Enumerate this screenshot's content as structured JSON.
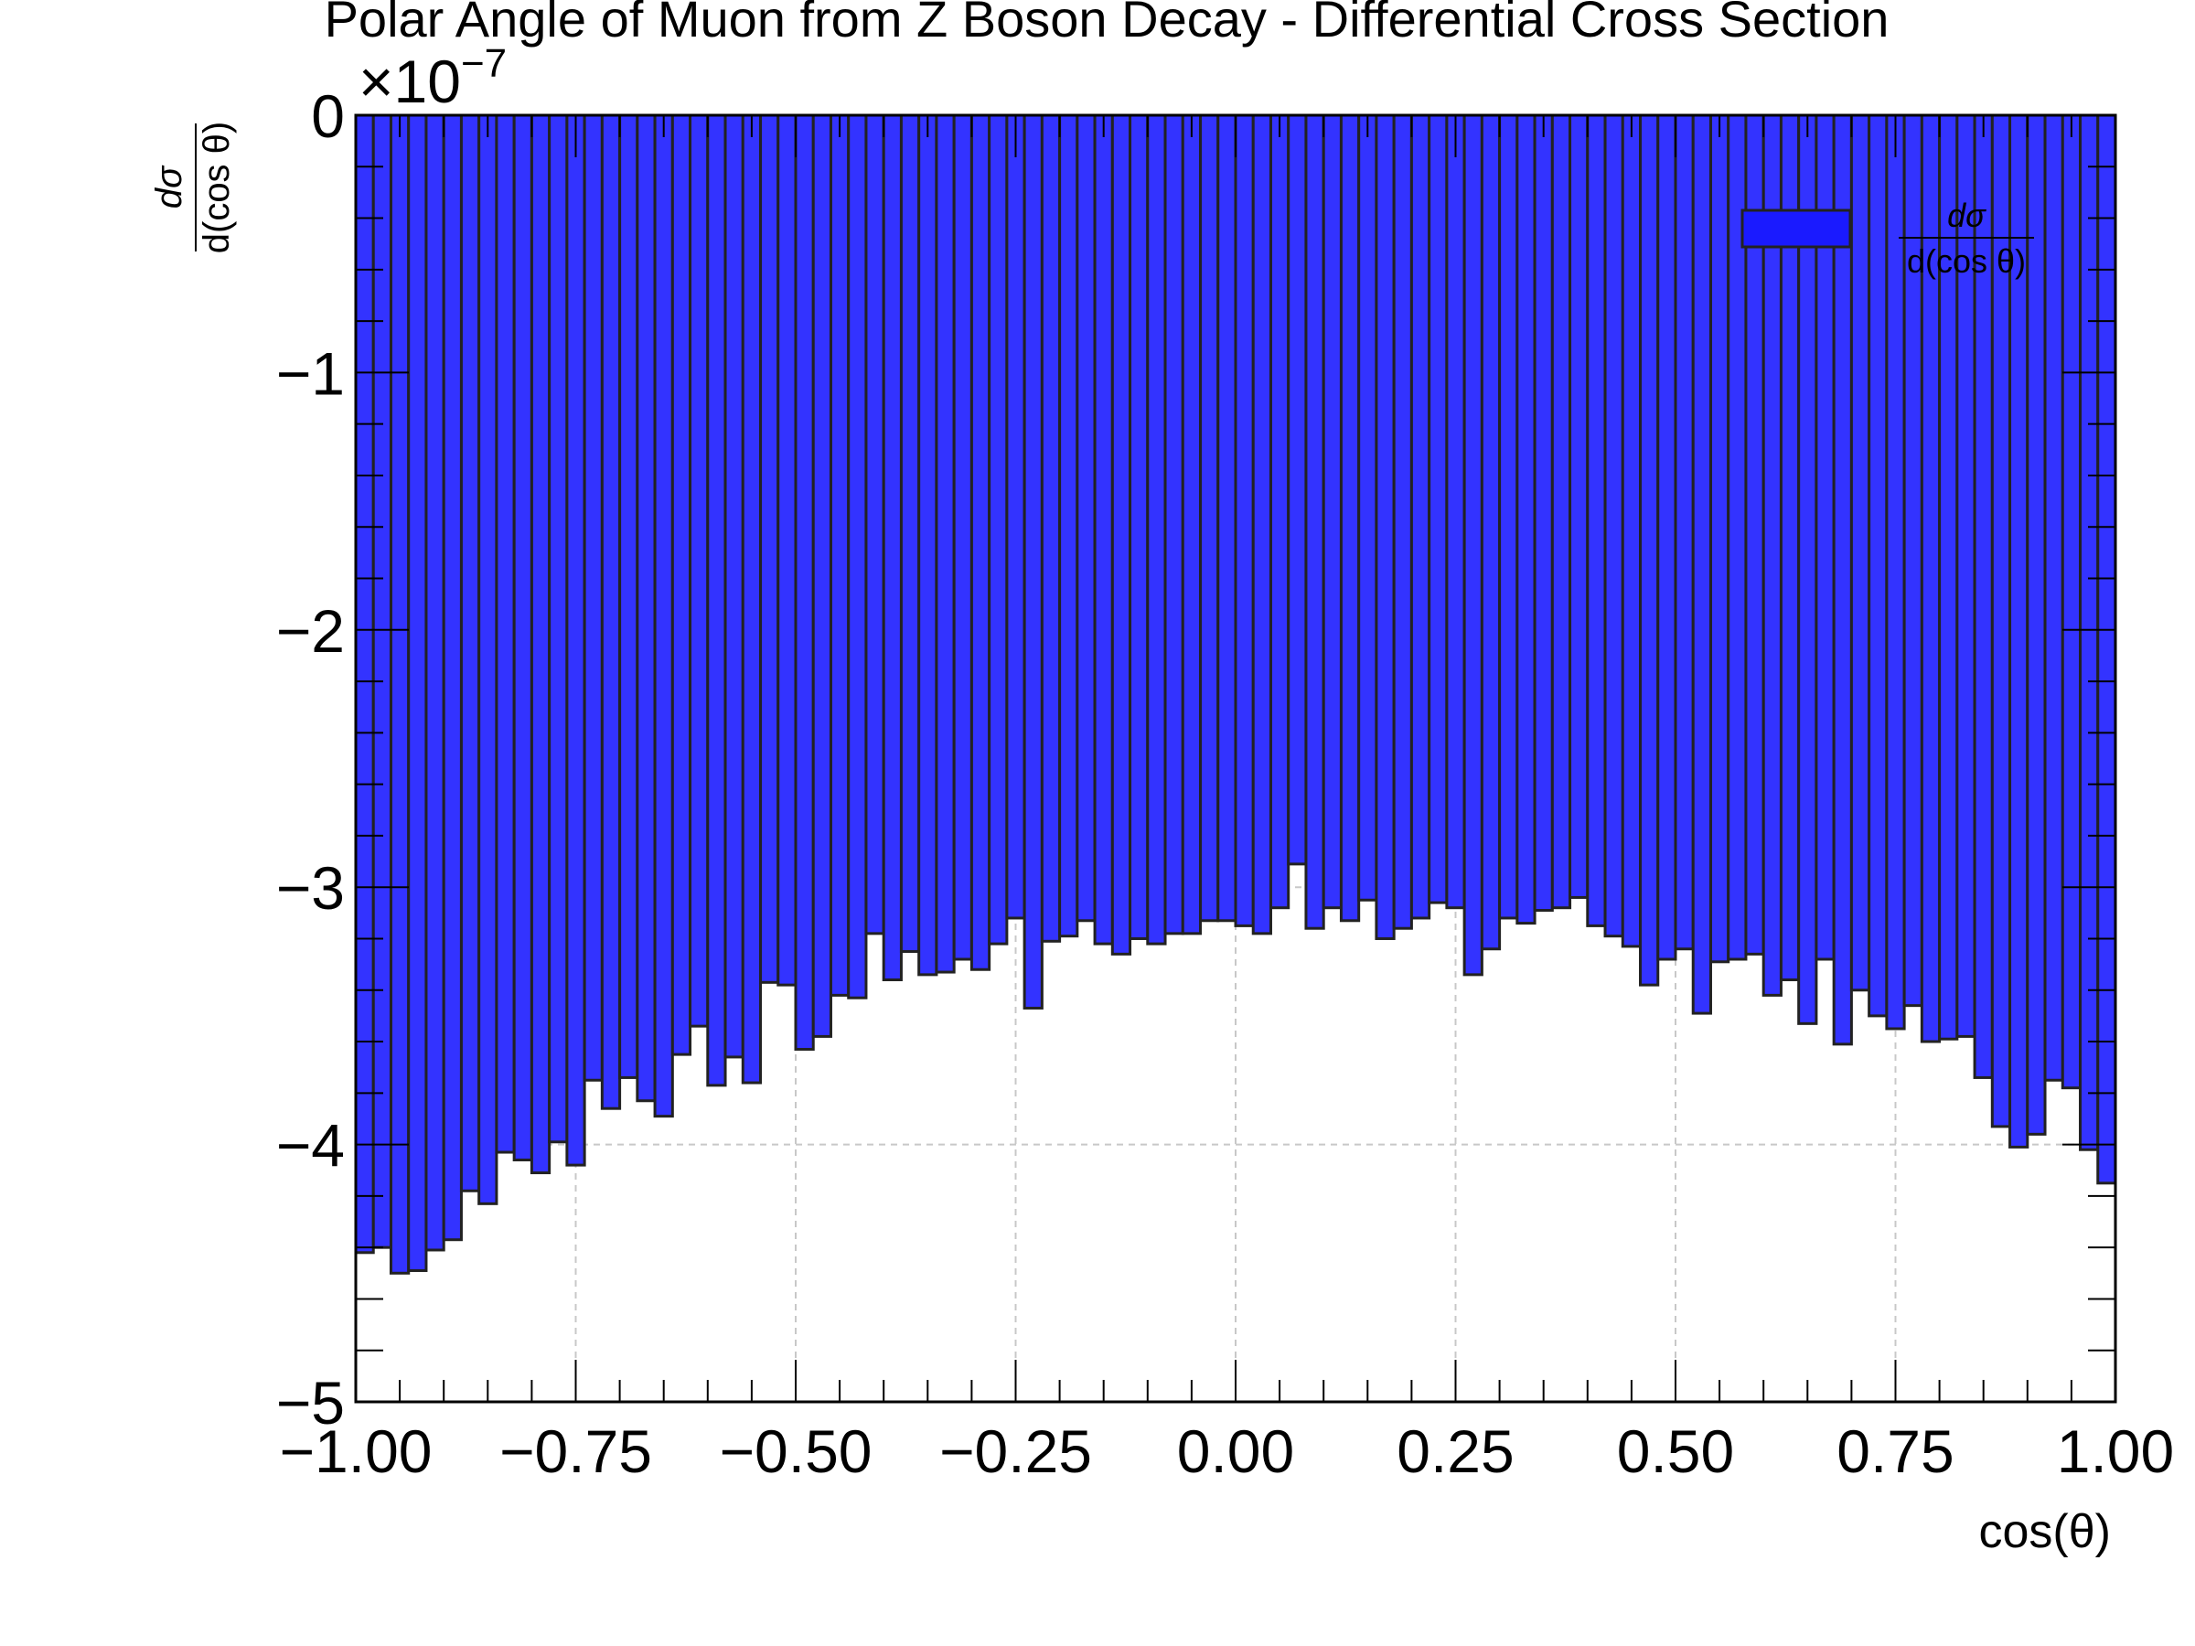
{
  "chart_data": {
    "type": "bar",
    "title": "Polar Angle of Muon from Z Boson Decay - Differential Cross Section",
    "xlabel": "cos(θ)",
    "ylabel": {
      "numerator": "dσ",
      "denominator": "d(cos θ)"
    },
    "y_multiplier": "×10",
    "y_multiplier_exponent": "−7",
    "xlim": [
      -1.0,
      1.0
    ],
    "ylim": [
      -5,
      0
    ],
    "xticks": [
      {
        "value": -1.0,
        "label": "−1.00"
      },
      {
        "value": -0.75,
        "label": "−0.75"
      },
      {
        "value": -0.5,
        "label": "−0.50"
      },
      {
        "value": -0.25,
        "label": "−0.25"
      },
      {
        "value": 0.0,
        "label": "0.00"
      },
      {
        "value": 0.25,
        "label": "0.25"
      },
      {
        "value": 0.5,
        "label": "0.50"
      },
      {
        "value": 0.75,
        "label": "0.75"
      },
      {
        "value": 1.0,
        "label": "1.00"
      }
    ],
    "yticks": [
      {
        "value": 0,
        "label": "0"
      },
      {
        "value": -1,
        "label": "−1"
      },
      {
        "value": -2,
        "label": "−2"
      },
      {
        "value": -3,
        "label": "−3"
      },
      {
        "value": -4,
        "label": "−4"
      },
      {
        "value": -5,
        "label": "−5"
      }
    ],
    "grid": true,
    "legend": {
      "position": "top-right",
      "label_numerator": "dσ",
      "label_denominator": "d(cos θ)"
    },
    "bar_color": "#3333ff",
    "bar_edge_color": "#222222",
    "bin_width": 0.02,
    "bin_start": -1.0,
    "values": [
      -4.42,
      -4.4,
      -4.5,
      -4.49,
      -4.41,
      -4.37,
      -4.18,
      -4.23,
      -4.03,
      -4.06,
      -4.11,
      -3.99,
      -4.08,
      -3.75,
      -3.86,
      -3.74,
      -3.83,
      -3.89,
      -3.65,
      -3.54,
      -3.77,
      -3.66,
      -3.76,
      -3.37,
      -3.38,
      -3.63,
      -3.58,
      -3.42,
      -3.43,
      -3.18,
      -3.36,
      -3.25,
      -3.34,
      -3.33,
      -3.28,
      -3.32,
      -3.22,
      -3.12,
      -3.47,
      -3.21,
      -3.19,
      -3.13,
      -3.22,
      -3.26,
      -3.2,
      -3.22,
      -3.18,
      -3.18,
      -3.13,
      -3.13,
      -3.15,
      -3.18,
      -3.08,
      -2.91,
      -3.16,
      -3.08,
      -3.13,
      -3.05,
      -3.2,
      -3.16,
      -3.12,
      -3.06,
      -3.08,
      -3.34,
      -3.24,
      -3.12,
      -3.14,
      -3.09,
      -3.08,
      -3.04,
      -3.15,
      -3.19,
      -3.23,
      -3.38,
      -3.28,
      -3.24,
      -3.49,
      -3.29,
      -3.28,
      -3.26,
      -3.42,
      -3.36,
      -3.53,
      -3.28,
      -3.61,
      -3.4,
      -3.5,
      -3.55,
      -3.46,
      -3.6,
      -3.59,
      -3.58,
      -3.74,
      -3.93,
      -4.01,
      -3.96,
      -3.75,
      -3.78,
      -4.02,
      -4.15
    ]
  }
}
